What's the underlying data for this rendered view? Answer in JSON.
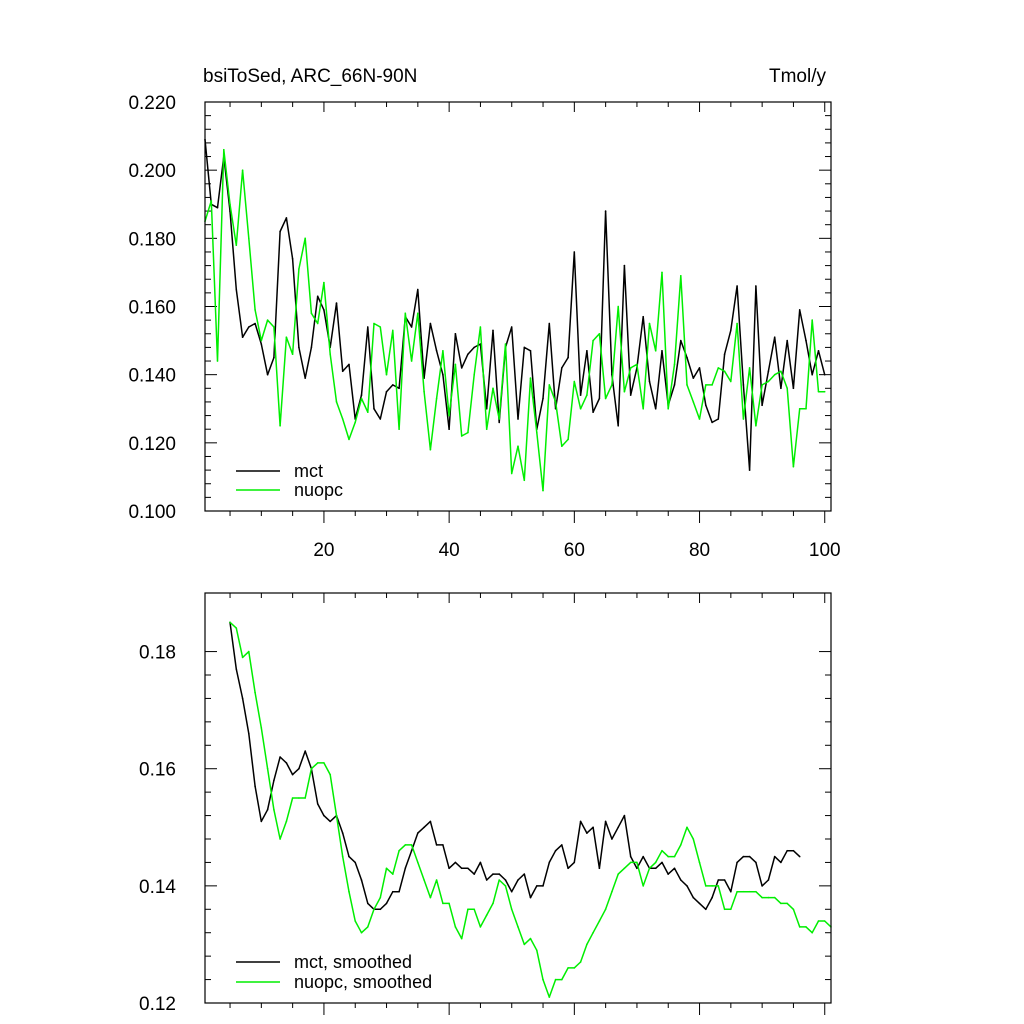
{
  "chart_data": [
    {
      "type": "line",
      "title_left": "bsiToSed, ARC_66N-90N",
      "title_right": "Tmol/y",
      "xlabel": "",
      "ylabel": "",
      "xlim": [
        1,
        101
      ],
      "ylim": [
        0.1,
        0.22
      ],
      "xticks": [
        20,
        40,
        60,
        80,
        100
      ],
      "yticks": [
        0.1,
        0.12,
        0.14,
        0.16,
        0.18,
        0.2,
        0.22
      ],
      "ytick_labels": [
        "0.100",
        "0.120",
        "0.140",
        "0.160",
        "0.180",
        "0.200",
        "0.220"
      ],
      "show_xtick_labels": true,
      "grid": false,
      "legend_position": "bottom-left",
      "series": [
        {
          "name": "mct",
          "color": "#000000",
          "x_start": 1,
          "values": [
            0.209,
            0.19,
            0.189,
            0.204,
            0.188,
            0.165,
            0.151,
            0.154,
            0.155,
            0.149,
            0.14,
            0.145,
            0.182,
            0.186,
            0.174,
            0.148,
            0.139,
            0.148,
            0.163,
            0.159,
            0.148,
            0.161,
            0.141,
            0.143,
            0.127,
            0.134,
            0.154,
            0.13,
            0.127,
            0.135,
            0.137,
            0.136,
            0.157,
            0.154,
            0.165,
            0.139,
            0.155,
            0.147,
            0.14,
            0.124,
            0.152,
            0.142,
            0.146,
            0.148,
            0.149,
            0.13,
            0.153,
            0.126,
            0.148,
            0.154,
            0.127,
            0.148,
            0.147,
            0.124,
            0.133,
            0.155,
            0.13,
            0.142,
            0.145,
            0.176,
            0.134,
            0.147,
            0.129,
            0.133,
            0.188,
            0.14,
            0.125,
            0.172,
            0.134,
            0.142,
            0.157,
            0.138,
            0.13,
            0.147,
            0.131,
            0.137,
            0.15,
            0.145,
            0.139,
            0.142,
            0.131,
            0.126,
            0.127,
            0.146,
            0.153,
            0.166,
            0.137,
            0.112,
            0.166,
            0.131,
            0.141,
            0.151,
            0.136,
            0.15,
            0.136,
            0.159,
            0.15,
            0.14,
            0.147,
            0.14
          ]
        },
        {
          "name": "nuopc",
          "color": "#00ee00",
          "x_start": 1,
          "values": [
            0.185,
            0.191,
            0.144,
            0.206,
            0.19,
            0.178,
            0.2,
            0.18,
            0.159,
            0.15,
            0.156,
            0.154,
            0.125,
            0.151,
            0.146,
            0.171,
            0.18,
            0.158,
            0.155,
            0.167,
            0.146,
            0.132,
            0.127,
            0.121,
            0.126,
            0.133,
            0.129,
            0.155,
            0.154,
            0.14,
            0.153,
            0.124,
            0.158,
            0.144,
            0.158,
            0.135,
            0.118,
            0.133,
            0.147,
            0.128,
            0.143,
            0.122,
            0.123,
            0.14,
            0.154,
            0.124,
            0.136,
            0.127,
            0.149,
            0.111,
            0.119,
            0.109,
            0.139,
            0.123,
            0.106,
            0.137,
            0.132,
            0.119,
            0.121,
            0.138,
            0.13,
            0.134,
            0.15,
            0.152,
            0.133,
            0.137,
            0.16,
            0.135,
            0.142,
            0.143,
            0.13,
            0.155,
            0.147,
            0.17,
            0.13,
            0.143,
            0.169,
            0.137,
            0.132,
            0.127,
            0.137,
            0.137,
            0.142,
            0.141,
            0.138,
            0.155,
            0.127,
            0.142,
            0.125,
            0.137,
            0.138,
            0.14,
            0.141,
            0.136,
            0.113,
            0.13,
            0.13,
            0.156,
            0.135,
            0.135
          ]
        }
      ]
    },
    {
      "type": "line",
      "xlabel": "",
      "ylabel": "",
      "xlim": [
        1,
        101
      ],
      "ylim": [
        0.12,
        0.19
      ],
      "xticks": [
        20,
        40,
        60,
        80,
        100
      ],
      "yticks": [
        0.12,
        0.14,
        0.16,
        0.18
      ],
      "ytick_labels": [
        "0.12",
        "0.14",
        "0.16",
        "0.18"
      ],
      "show_xtick_labels": false,
      "grid": false,
      "legend_position": "bottom-left",
      "series": [
        {
          "name": "mct, smoothed",
          "color": "#000000",
          "x_start": 5,
          "values": [
            0.185,
            0.177,
            0.172,
            0.166,
            0.157,
            0.151,
            0.153,
            0.158,
            0.162,
            0.161,
            0.159,
            0.16,
            0.163,
            0.16,
            0.154,
            0.152,
            0.151,
            0.152,
            0.149,
            0.145,
            0.144,
            0.141,
            0.137,
            0.136,
            0.136,
            0.137,
            0.139,
            0.139,
            0.143,
            0.146,
            0.149,
            0.15,
            0.151,
            0.147,
            0.147,
            0.143,
            0.144,
            0.143,
            0.143,
            0.142,
            0.144,
            0.141,
            0.142,
            0.142,
            0.141,
            0.139,
            0.141,
            0.142,
            0.138,
            0.14,
            0.14,
            0.144,
            0.146,
            0.147,
            0.143,
            0.144,
            0.151,
            0.149,
            0.15,
            0.143,
            0.151,
            0.148,
            0.15,
            0.152,
            0.145,
            0.143,
            0.145,
            0.143,
            0.143,
            0.144,
            0.142,
            0.143,
            0.141,
            0.14,
            0.138,
            0.137,
            0.136,
            0.138,
            0.141,
            0.141,
            0.139,
            0.144,
            0.145,
            0.145,
            0.144,
            0.14,
            0.141,
            0.145,
            0.144,
            0.146,
            0.146,
            0.145
          ]
        },
        {
          "name": "nuopc, smoothed",
          "color": "#00ee00",
          "x_start": 5,
          "values": [
            0.185,
            0.184,
            0.179,
            0.18,
            0.173,
            0.167,
            0.16,
            0.153,
            0.148,
            0.151,
            0.155,
            0.155,
            0.155,
            0.16,
            0.161,
            0.161,
            0.159,
            0.152,
            0.145,
            0.139,
            0.134,
            0.132,
            0.133,
            0.136,
            0.138,
            0.143,
            0.142,
            0.146,
            0.147,
            0.147,
            0.144,
            0.141,
            0.138,
            0.141,
            0.137,
            0.137,
            0.133,
            0.131,
            0.136,
            0.136,
            0.133,
            0.135,
            0.137,
            0.141,
            0.14,
            0.136,
            0.133,
            0.13,
            0.131,
            0.129,
            0.124,
            0.121,
            0.124,
            0.124,
            0.126,
            0.126,
            0.127,
            0.13,
            0.132,
            0.134,
            0.136,
            0.139,
            0.142,
            0.143,
            0.144,
            0.144,
            0.14,
            0.143,
            0.144,
            0.146,
            0.145,
            0.145,
            0.147,
            0.15,
            0.148,
            0.144,
            0.14,
            0.14,
            0.14,
            0.136,
            0.136,
            0.139,
            0.139,
            0.139,
            0.139,
            0.138,
            0.138,
            0.138,
            0.137,
            0.137,
            0.136,
            0.133,
            0.133,
            0.132,
            0.134,
            0.134,
            0.133
          ]
        }
      ]
    }
  ]
}
